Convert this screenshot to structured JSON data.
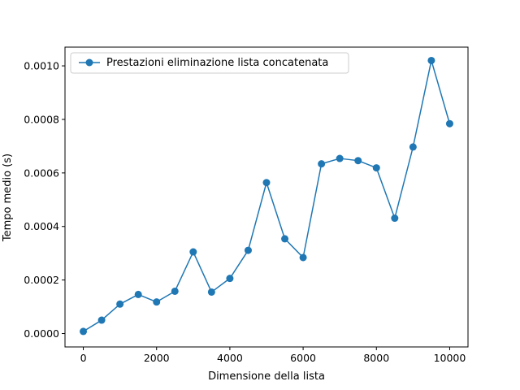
{
  "chart_data": {
    "type": "line",
    "title": "",
    "xlabel": "Dimensione della lista",
    "ylabel": "Tempo medio (s)",
    "xlim": [
      -500,
      10500
    ],
    "ylim": [
      -5e-05,
      0.00107
    ],
    "xticks": [
      0,
      2000,
      4000,
      6000,
      8000,
      10000
    ],
    "xtick_labels": [
      "0",
      "2000",
      "4000",
      "6000",
      "8000",
      "10000"
    ],
    "yticks": [
      0.0,
      0.0002,
      0.0004,
      0.0006,
      0.0008,
      0.001
    ],
    "ytick_labels": [
      "0.0000",
      "0.0002",
      "0.0004",
      "0.0006",
      "0.0008",
      "0.0010"
    ],
    "grid": false,
    "legend_position": "top-left",
    "series": [
      {
        "name": "Prestazioni eliminazione lista concatenata",
        "color": "#1f77b4",
        "marker": "circle",
        "x": [
          0,
          500,
          1000,
          1500,
          2000,
          2500,
          3000,
          3500,
          4000,
          4500,
          5000,
          5500,
          6000,
          6500,
          7000,
          7500,
          8000,
          8500,
          9000,
          9500,
          10000
        ],
        "y": [
          8e-06,
          5e-05,
          0.00011,
          0.000146,
          0.000118,
          0.000158,
          0.000305,
          0.000155,
          0.000206,
          0.000311,
          0.000564,
          0.000354,
          0.000284,
          0.000634,
          0.000654,
          0.000646,
          0.000619,
          0.000431,
          0.000697,
          0.00102,
          0.000784
        ]
      }
    ]
  }
}
